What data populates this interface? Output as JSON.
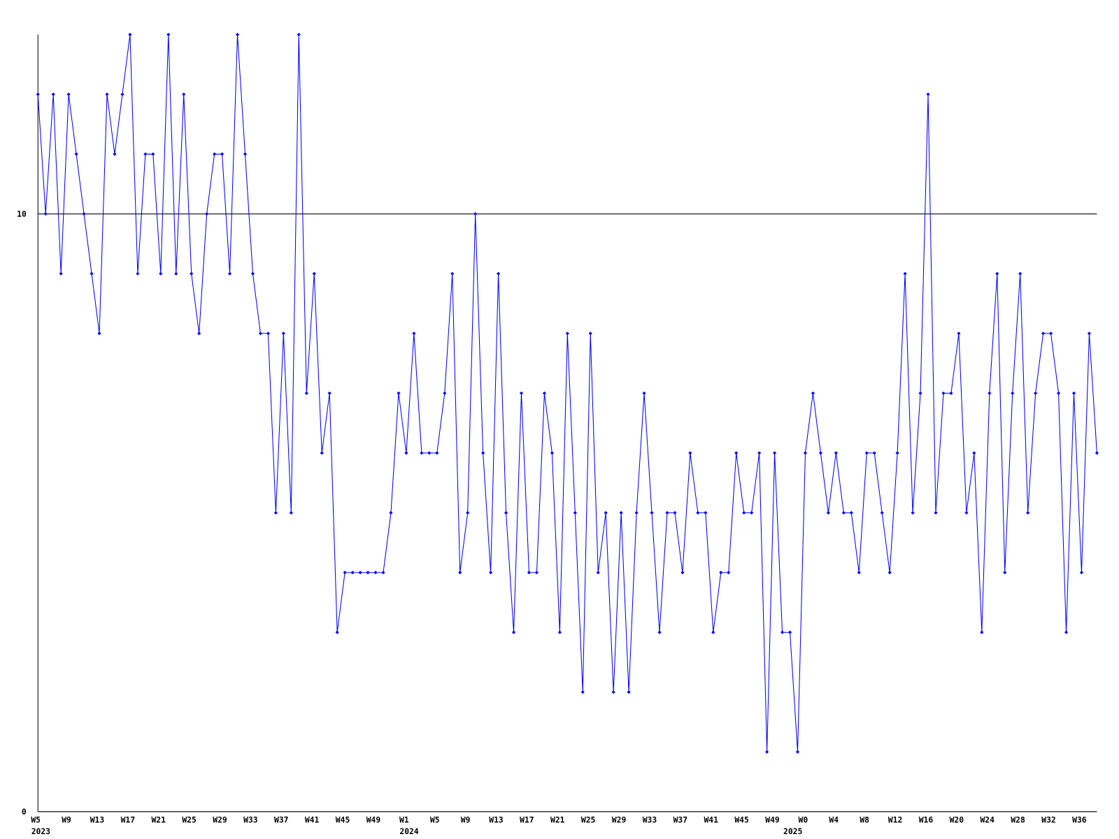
{
  "chart_data": {
    "type": "line",
    "categories": [
      "W5",
      null,
      null,
      null,
      "W9",
      null,
      null,
      null,
      "W13",
      null,
      null,
      null,
      "W17",
      null,
      null,
      null,
      "W21",
      null,
      null,
      null,
      "W25",
      null,
      null,
      null,
      "W29",
      null,
      null,
      null,
      "W33",
      null,
      null,
      null,
      "W37",
      null,
      null,
      null,
      "W41",
      null,
      null,
      null,
      "W45",
      null,
      null,
      null,
      "W49",
      null,
      null,
      null,
      "W1",
      null,
      null,
      null,
      "W5",
      null,
      null,
      null,
      "W9",
      null,
      null,
      null,
      "W13",
      null,
      null,
      null,
      "W17",
      null,
      null,
      null,
      "W21",
      null,
      null,
      null,
      "W25",
      null,
      null,
      null,
      "W29",
      null,
      null,
      null,
      "W33",
      null,
      null,
      null,
      "W37",
      null,
      null,
      null,
      "W41",
      null,
      null,
      null,
      "W45",
      null,
      null,
      null,
      "W49",
      null,
      null,
      null,
      "W0",
      null,
      null,
      null,
      "W4",
      null,
      null,
      null,
      "W8",
      null,
      null,
      null,
      "W12",
      null,
      null,
      null,
      "W16",
      null,
      null,
      null,
      "W20",
      null,
      null,
      null,
      "W24",
      null,
      null,
      null,
      "W28",
      null,
      null,
      null,
      "W32",
      null,
      null,
      null,
      "W36",
      null,
      null
    ],
    "category_years": [
      "2023",
      null,
      null,
      null,
      null,
      null,
      null,
      null,
      null,
      null,
      null,
      null,
      null,
      null,
      null,
      null,
      null,
      null,
      null,
      null,
      null,
      null,
      null,
      null,
      null,
      null,
      null,
      null,
      null,
      null,
      null,
      null,
      null,
      null,
      null,
      null,
      null,
      null,
      null,
      null,
      null,
      null,
      null,
      null,
      null,
      null,
      null,
      null,
      "2024",
      null,
      null,
      null,
      null,
      null,
      null,
      null,
      null,
      null,
      null,
      null,
      null,
      null,
      null,
      null,
      null,
      null,
      null,
      null,
      null,
      null,
      null,
      null,
      null,
      null,
      null,
      null,
      null,
      null,
      null,
      null,
      null,
      null,
      null,
      null,
      null,
      null,
      null,
      null,
      null,
      null,
      null,
      null,
      null,
      null,
      null,
      null,
      null,
      null,
      "2025",
      null,
      null,
      null,
      null,
      null,
      null,
      null,
      null,
      null,
      null,
      null,
      null,
      null,
      null,
      null,
      null,
      null,
      null,
      null,
      null,
      null,
      null,
      null,
      null,
      null,
      null,
      null,
      null,
      null,
      null,
      null,
      null,
      null,
      null,
      null,
      null,
      null,
      null
    ],
    "series": [
      {
        "color": "#0000ff",
        "values": [
          12,
          10,
          12,
          9,
          12,
          11,
          10,
          9,
          8,
          12,
          11,
          12,
          13,
          9,
          11,
          11,
          9,
          13,
          9,
          12,
          9,
          8,
          10,
          11,
          11,
          9,
          13,
          11,
          9,
          8,
          8,
          5,
          8,
          5,
          13,
          7,
          9,
          6,
          7,
          3,
          4,
          4,
          4,
          4,
          4,
          4,
          5,
          7,
          6,
          8,
          6,
          6,
          6,
          7,
          9,
          4,
          5,
          10,
          6,
          4,
          9,
          5,
          3,
          7,
          4,
          4,
          7,
          6,
          3,
          8,
          5,
          2,
          8,
          4,
          5,
          2,
          5,
          2,
          5,
          7,
          5,
          3,
          5,
          5,
          4,
          6,
          5,
          5,
          3,
          4,
          4,
          6,
          5,
          5,
          6,
          1,
          6,
          3,
          3,
          1,
          6,
          7,
          6,
          5,
          6,
          5,
          5,
          4,
          6,
          6,
          5,
          4,
          6,
          9,
          5,
          7,
          12,
          5,
          7,
          7,
          8,
          5,
          6,
          3,
          7,
          9,
          4,
          7,
          9,
          5,
          7,
          8,
          8,
          7,
          3,
          7,
          4,
          8,
          6
        ]
      }
    ],
    "ylim": [
      0,
      13
    ],
    "yticks": [
      0,
      10
    ],
    "grid": true
  }
}
